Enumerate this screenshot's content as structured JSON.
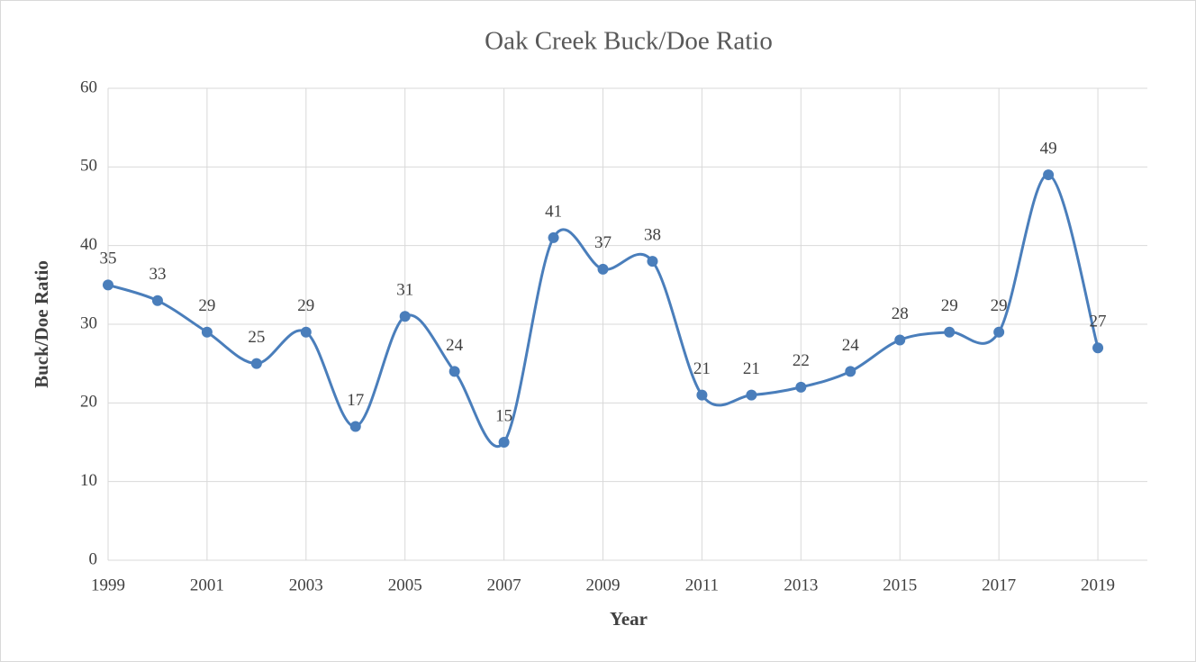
{
  "chart_data": {
    "type": "line",
    "title": "Oak Creek Buck/Doe Ratio",
    "x_label": "Year",
    "y_label": "Buck/Doe Ratio",
    "x": [
      1999,
      2000,
      2001,
      2002,
      2003,
      2004,
      2005,
      2006,
      2007,
      2008,
      2009,
      2010,
      2011,
      2012,
      2013,
      2014,
      2015,
      2016,
      2017,
      2018,
      2019
    ],
    "values": [
      35,
      33,
      29,
      25,
      29,
      17,
      31,
      24,
      15,
      41,
      37,
      38,
      21,
      21,
      22,
      24,
      28,
      29,
      29,
      49,
      27
    ],
    "color": "#4a7ebb",
    "smooth": true,
    "markers": true,
    "xlim": [
      1999,
      2020
    ],
    "xticks": [
      1999,
      2001,
      2003,
      2005,
      2007,
      2009,
      2011,
      2013,
      2015,
      2017,
      2019
    ],
    "ylim": [
      0,
      60
    ],
    "yticks": [
      0,
      10,
      20,
      30,
      40,
      50,
      60
    ],
    "grid": true
  }
}
